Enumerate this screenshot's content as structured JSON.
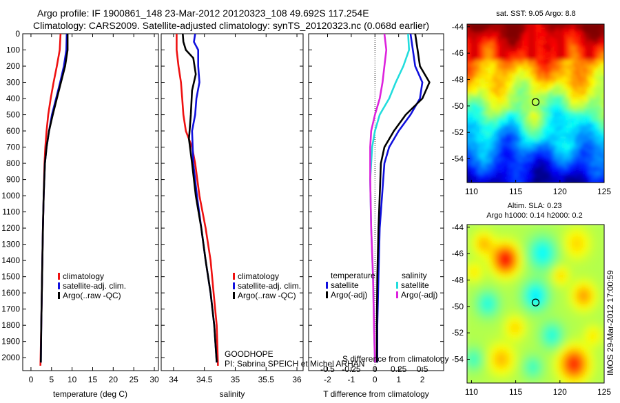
{
  "header": {
    "title_line1": "Argo profile: IF 1900861_148 23-Mar-2012 20120323_108 49.692S 117.254E",
    "title_line2": "Climatology: CARS2009. Satellite-adjusted climatology: synTS_20120323.nc (0.068d earlier)"
  },
  "credits": {
    "project": "GOODHOPE",
    "pi": "PI: Sabrina SPEICH et Michel ARHAN",
    "stamp": "IMOS 29-Mar-2012 17:00:59"
  },
  "colors": {
    "climatology": "#ee1111",
    "satellite": "#1010dd",
    "argo": "#000000",
    "salinity_satellite": "#22dddd",
    "salinity_argo": "#dd22dd"
  },
  "chart_data": [
    {
      "id": "temperature",
      "type": "line",
      "xlabel": "temperature (deg C)",
      "ylabel": "",
      "xlim": [
        -2,
        31
      ],
      "ylim": [
        2080,
        0
      ],
      "xticks": [
        0,
        5,
        10,
        15,
        20,
        25,
        30
      ],
      "yticks": [
        0,
        100,
        200,
        300,
        400,
        500,
        600,
        700,
        800,
        900,
        1000,
        1100,
        1200,
        1300,
        1400,
        1500,
        1600,
        1700,
        1800,
        1900,
        2000
      ],
      "legend": [
        "climatology",
        "satellite-adj. clim.",
        "Argo(..raw -QC)"
      ],
      "series": [
        {
          "name": "climatology",
          "color": "#ee1111",
          "points": [
            [
              7.2,
              0
            ],
            [
              7.0,
              100
            ],
            [
              6.3,
              200
            ],
            [
              5.5,
              300
            ],
            [
              4.8,
              400
            ],
            [
              4.2,
              500
            ],
            [
              3.8,
              600
            ],
            [
              3.5,
              700
            ],
            [
              3.3,
              800
            ],
            [
              3.1,
              1000
            ],
            [
              2.9,
              1200
            ],
            [
              2.7,
              1500
            ],
            [
              2.5,
              1800
            ],
            [
              2.3,
              2050
            ]
          ]
        },
        {
          "name": "satellite-adj. clim.",
          "color": "#1010dd",
          "points": [
            [
              8.7,
              0
            ],
            [
              8.6,
              100
            ],
            [
              8.0,
              200
            ],
            [
              7.1,
              300
            ],
            [
              6.1,
              400
            ],
            [
              5.1,
              500
            ],
            [
              4.4,
              600
            ],
            [
              3.8,
              700
            ],
            [
              3.4,
              800
            ],
            [
              3.1,
              1000
            ],
            [
              2.9,
              1200
            ],
            [
              2.7,
              1500
            ],
            [
              2.5,
              1800
            ],
            [
              2.4,
              2030
            ]
          ]
        },
        {
          "name": "Argo(..raw -QC)",
          "color": "#000000",
          "points": [
            [
              8.9,
              0
            ],
            [
              8.9,
              100
            ],
            [
              8.3,
              200
            ],
            [
              7.3,
              300
            ],
            [
              6.3,
              400
            ],
            [
              5.3,
              500
            ],
            [
              4.4,
              600
            ],
            [
              3.8,
              700
            ],
            [
              3.4,
              800
            ],
            [
              3.1,
              1000
            ],
            [
              2.9,
              1200
            ],
            [
              2.7,
              1500
            ],
            [
              2.5,
              1800
            ],
            [
              2.4,
              2030
            ]
          ]
        }
      ]
    },
    {
      "id": "salinity",
      "type": "line",
      "xlabel": "salinity",
      "ylabel": "",
      "xlim": [
        33.8,
        36.1
      ],
      "ylim": [
        2080,
        0
      ],
      "xticks": [
        34,
        34.5,
        35,
        35.5,
        36
      ],
      "yticks": [],
      "legend": [
        "climatology",
        "satellite-adj. clim.",
        "Argo(..raw -QC)"
      ],
      "series": [
        {
          "name": "climatology",
          "color": "#ee1111",
          "points": [
            [
              34.05,
              0
            ],
            [
              34.05,
              100
            ],
            [
              34.08,
              200
            ],
            [
              34.12,
              300
            ],
            [
              34.14,
              400
            ],
            [
              34.16,
              500
            ],
            [
              34.2,
              600
            ],
            [
              34.3,
              700
            ],
            [
              34.35,
              800
            ],
            [
              34.42,
              1000
            ],
            [
              34.52,
              1200
            ],
            [
              34.6,
              1400
            ],
            [
              34.65,
              1600
            ],
            [
              34.7,
              1800
            ],
            [
              34.72,
              2050
            ]
          ]
        },
        {
          "name": "satellite-adj. clim.",
          "color": "#1010dd",
          "points": [
            [
              34.35,
              0
            ],
            [
              34.33,
              50
            ],
            [
              34.4,
              100
            ],
            [
              34.4,
              200
            ],
            [
              34.42,
              300
            ],
            [
              34.37,
              400
            ],
            [
              34.35,
              500
            ],
            [
              34.3,
              600
            ],
            [
              34.32,
              800
            ],
            [
              34.38,
              1000
            ],
            [
              34.45,
              1200
            ],
            [
              34.52,
              1400
            ],
            [
              34.6,
              1600
            ],
            [
              34.66,
              1800
            ],
            [
              34.7,
              2030
            ]
          ]
        },
        {
          "name": "Argo(..raw -QC)",
          "color": "#000000",
          "points": [
            [
              34.15,
              0
            ],
            [
              34.16,
              50
            ],
            [
              34.2,
              100
            ],
            [
              34.32,
              150
            ],
            [
              34.36,
              250
            ],
            [
              34.3,
              350
            ],
            [
              34.28,
              500
            ],
            [
              34.25,
              650
            ],
            [
              34.3,
              800
            ],
            [
              34.36,
              1000
            ],
            [
              34.45,
              1200
            ],
            [
              34.52,
              1400
            ],
            [
              34.6,
              1600
            ],
            [
              34.66,
              1800
            ],
            [
              34.7,
              2030
            ]
          ]
        }
      ]
    },
    {
      "id": "difference",
      "type": "line",
      "xlabel": "T difference from climatology",
      "top_xlabel": "S difference from climatology",
      "ylabel": "",
      "xlim": [
        -2.8,
        2.9
      ],
      "ylim": [
        2080,
        0
      ],
      "xticks": [
        -2,
        -1,
        0,
        1,
        2
      ],
      "top_xlim": [
        -0.7,
        0.725
      ],
      "top_xticks": [
        -0.5,
        -0.25,
        0,
        0.25,
        0.5
      ],
      "top_xticklabels": [
        "-0.5",
        "-0.25",
        "0",
        "0.25",
        "0.5"
      ],
      "yticks": [],
      "legend_titles": [
        "temperature",
        "salinity"
      ],
      "legend": [
        "satellite",
        "Argo(-adj)",
        "satellite",
        "Argo(-adj)"
      ],
      "series": [
        {
          "name": "temperature satellite",
          "color": "#1010dd",
          "axis": "T",
          "points": [
            [
              1.5,
              0
            ],
            [
              1.6,
              100
            ],
            [
              1.7,
              200
            ],
            [
              2.0,
              300
            ],
            [
              1.9,
              400
            ],
            [
              1.5,
              500
            ],
            [
              1.0,
              600
            ],
            [
              0.6,
              700
            ],
            [
              0.4,
              800
            ],
            [
              0.3,
              1000
            ],
            [
              0.2,
              1200
            ],
            [
              0.15,
              1500
            ],
            [
              0.1,
              1800
            ],
            [
              0.1,
              2030
            ]
          ]
        },
        {
          "name": "temperature Argo(-adj)",
          "color": "#000000",
          "axis": "T",
          "points": [
            [
              1.7,
              0
            ],
            [
              1.8,
              100
            ],
            [
              1.9,
              200
            ],
            [
              2.3,
              300
            ],
            [
              2.0,
              400
            ],
            [
              1.3,
              500
            ],
            [
              0.8,
              600
            ],
            [
              0.4,
              700
            ],
            [
              0.25,
              800
            ],
            [
              0.2,
              1000
            ],
            [
              0.15,
              1200
            ],
            [
              0.1,
              1500
            ],
            [
              0.08,
              1800
            ],
            [
              0.08,
              2030
            ]
          ]
        },
        {
          "name": "salinity satellite",
          "color": "#22dddd",
          "axis": "S",
          "points": [
            [
              0.35,
              0
            ],
            [
              0.36,
              100
            ],
            [
              0.3,
              200
            ],
            [
              0.22,
              300
            ],
            [
              0.15,
              400
            ],
            [
              0.05,
              500
            ],
            [
              0,
              600
            ],
            [
              -0.03,
              700
            ],
            [
              -0.05,
              900
            ],
            [
              -0.04,
              1200
            ],
            [
              -0.02,
              1500
            ],
            [
              -0.01,
              1800
            ],
            [
              0,
              2030
            ]
          ]
        },
        {
          "name": "salinity Argo(-adj)",
          "color": "#dd22dd",
          "axis": "S",
          "points": [
            [
              0.1,
              0
            ],
            [
              0.12,
              100
            ],
            [
              0.1,
              200
            ],
            [
              0.08,
              300
            ],
            [
              0.05,
              400
            ],
            [
              0.0,
              500
            ],
            [
              -0.04,
              600
            ],
            [
              -0.05,
              700
            ],
            [
              -0.05,
              900
            ],
            [
              -0.04,
              1200
            ],
            [
              -0.02,
              1500
            ],
            [
              -0.01,
              1800
            ],
            [
              0,
              2030
            ]
          ]
        }
      ]
    },
    {
      "id": "sst_map",
      "type": "heatmap",
      "title": "sat. SST: 9.05 Argo: 8.8",
      "xlim": [
        109.5,
        125
      ],
      "ylim": [
        -55.8,
        -43.8
      ],
      "xticks": [
        110,
        115,
        120,
        125
      ],
      "yticks": [
        -44,
        -46,
        -48,
        -50,
        -52,
        -54
      ],
      "yticklabels": [
        "-44",
        "-46",
        "-48",
        "-50",
        "-52",
        "-54"
      ],
      "marker": [
        117.25,
        -49.7
      ]
    },
    {
      "id": "sla_map",
      "type": "heatmap",
      "title_line1": "Altim. SLA: 0.23",
      "title_line2": "Argo h1000: 0.14 h2000: 0.2",
      "xlim": [
        109.5,
        125
      ],
      "ylim": [
        -55.8,
        -43.8
      ],
      "xticks": [
        110,
        115,
        120,
        125
      ],
      "yticks": [
        -44,
        -46,
        -48,
        -50,
        -52,
        -54
      ],
      "yticklabels": [
        "-44",
        "-46",
        "-48",
        "-50",
        "-52",
        "-54"
      ],
      "marker": [
        117.25,
        -49.7
      ]
    }
  ]
}
